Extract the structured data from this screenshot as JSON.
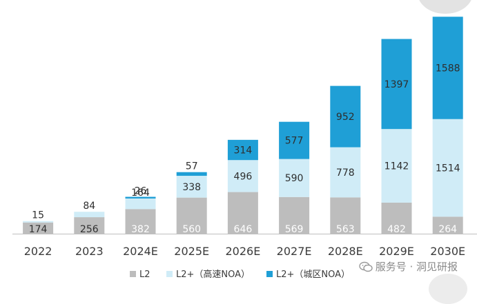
{
  "chart_data": {
    "type": "bar",
    "stacked": true,
    "categories": [
      "2022",
      "2023",
      "2024E",
      "2025E",
      "2026E",
      "2027E",
      "2028E",
      "2029E",
      "2030E"
    ],
    "series": [
      {
        "name": "L2",
        "color": "#bdbdbd",
        "values": [
          174,
          256,
          382,
          560,
          646,
          569,
          563,
          482,
          264
        ]
      },
      {
        "name": "L2+（高速NOA）",
        "color": "#d0ecf7",
        "values": [
          15,
          84,
          164,
          338,
          496,
          590,
          778,
          1142,
          1514
        ]
      },
      {
        "name": "L2+（城区NOA）",
        "color": "#1f9fd6",
        "values": [
          0,
          0,
          26,
          57,
          314,
          577,
          952,
          1397,
          1588
        ]
      }
    ],
    "data_labels": [
      [
        "174",
        "15",
        null
      ],
      [
        "256",
        "84",
        null
      ],
      [
        "382",
        "164",
        "26"
      ],
      [
        "560",
        "338",
        "57"
      ],
      [
        "646",
        "496",
        "314"
      ],
      [
        "569",
        "590",
        "577"
      ],
      [
        "563",
        "778",
        "952"
      ],
      [
        "482",
        "1142",
        "1397"
      ],
      [
        "264",
        "1514",
        "1588"
      ]
    ],
    "legend_position": "bottom",
    "grid": false,
    "title": "",
    "xlabel": "",
    "ylabel": ""
  },
  "watermark": {
    "text": "服务号 · 洞见研报",
    "icon": "wechat-icon"
  }
}
